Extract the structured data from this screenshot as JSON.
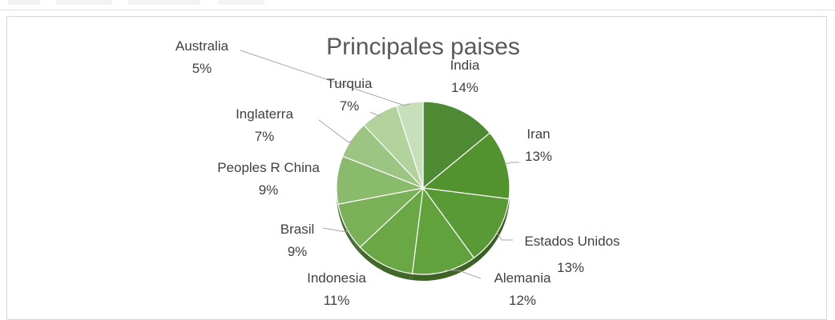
{
  "chart_data": {
    "type": "pie",
    "title": "Principales paises",
    "categories": [
      "India",
      "Iran",
      "Estados Unidos",
      "Alemania",
      "Indonesia",
      "Brasil",
      "Peoples R China",
      "Inglaterra",
      "Turquia",
      "Australia"
    ],
    "values": [
      14,
      13,
      13,
      12,
      11,
      9,
      9,
      7,
      7,
      5
    ],
    "labels": [
      "14%",
      "13%",
      "13%",
      "12%",
      "11%",
      "9%",
      "9%",
      "7%",
      "7%",
      "5%"
    ],
    "colors": [
      "#4d8a33",
      "#52922f",
      "#5a9a36",
      "#62a23c",
      "#6aa845",
      "#79b058",
      "#8aba6c",
      "#9cc584",
      "#b1d29d",
      "#c8dfbb"
    ],
    "legend": "none",
    "style": "3d"
  }
}
